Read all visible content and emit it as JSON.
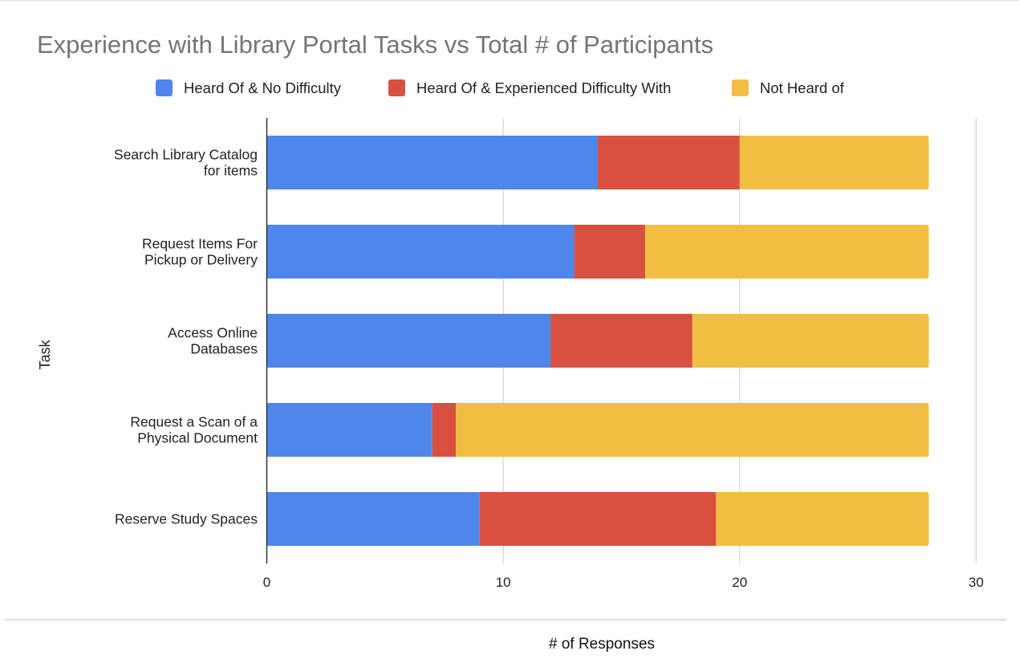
{
  "chart_data": {
    "type": "bar",
    "orientation": "horizontal",
    "stacked": true,
    "title": "Experience with Library Portal Tasks vs Total # of Participants",
    "xlabel": "# of Responses",
    "ylabel": "Task",
    "xlim": [
      0,
      30
    ],
    "xticks": [
      0,
      10,
      20,
      30
    ],
    "grid": true,
    "legend_position": "top",
    "categories": [
      [
        "Search Library Catalog",
        "for items"
      ],
      [
        "Request Items For",
        "Pickup or Delivery"
      ],
      [
        "Access Online",
        "Databases"
      ],
      [
        "Request a Scan of a",
        "Physical Document"
      ],
      [
        "Reserve Study Spaces"
      ]
    ],
    "series": [
      {
        "name": "Heard Of & No Difficulty",
        "color": "#4f86ec",
        "values": [
          14,
          13,
          12,
          7,
          9
        ]
      },
      {
        "name": "Heard Of & Experienced Difficulty With",
        "color": "#d95040",
        "values": [
          6,
          3,
          6,
          1,
          10
        ]
      },
      {
        "name": "Not Heard of",
        "color": "#f2be42",
        "values": [
          8,
          12,
          10,
          20,
          9
        ]
      }
    ]
  },
  "colors": {
    "title": "#757575",
    "text": "#222222",
    "grid": "#cccccc",
    "axis": "#333333"
  }
}
